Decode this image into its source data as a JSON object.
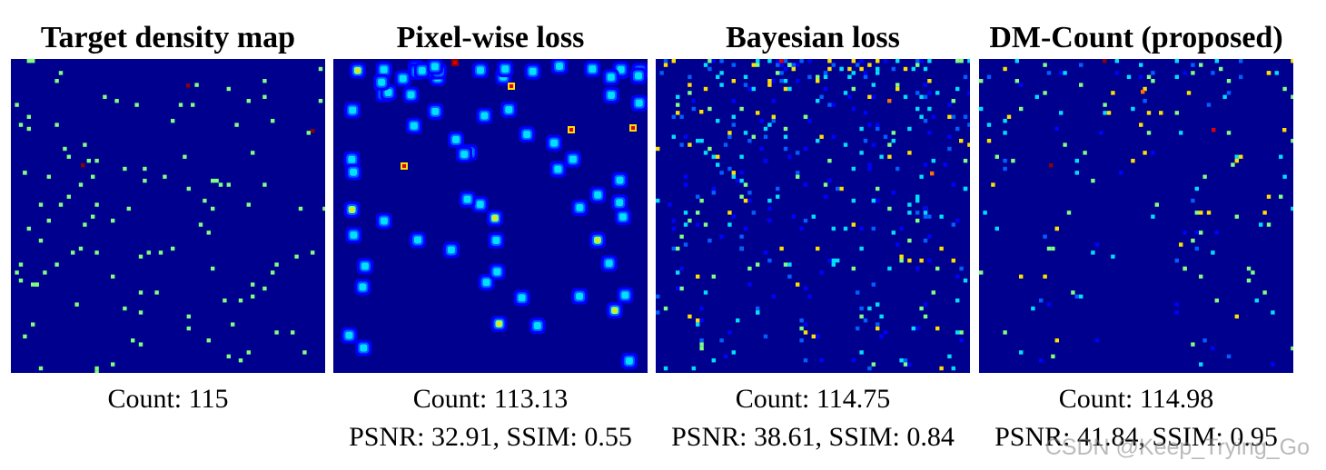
{
  "figure": {
    "panels": [
      {
        "id": "target",
        "title": "Target density map",
        "count_text": "Count: 115",
        "metrics_text": "",
        "style": "sparse-uniform",
        "seed": 11,
        "dots": 115
      },
      {
        "id": "pixel",
        "title": "Pixel-wise loss",
        "count_text": "Count: 113.13",
        "metrics_text": "PSNR: 32.91, SSIM: 0.55",
        "style": "blurred",
        "seed": 23,
        "dots": 70
      },
      {
        "id": "bayesian",
        "title": "Bayesian loss",
        "count_text": "Count: 114.75",
        "metrics_text": "PSNR: 38.61, SSIM: 0.84",
        "style": "scattered-top",
        "seed": 37,
        "dots": 420
      },
      {
        "id": "dmcount",
        "title": "DM-Count (proposed)",
        "count_text": "Count: 114.98",
        "metrics_text": "PSNR: 41.84, SSIM: 0.95",
        "style": "sparse-mixed",
        "seed": 53,
        "dots": 160
      }
    ],
    "colormap": {
      "low": "#00008f",
      "blue": "#0000ff",
      "mid_blue": "#0060ff",
      "cyan": "#00dfff",
      "green": "#7fff7f",
      "yellow": "#ffdf00",
      "orange": "#ff7000",
      "red": "#df0000",
      "dark_red": "#8f0000"
    }
  },
  "watermark": "CSDN @Keep_Trying_Go"
}
